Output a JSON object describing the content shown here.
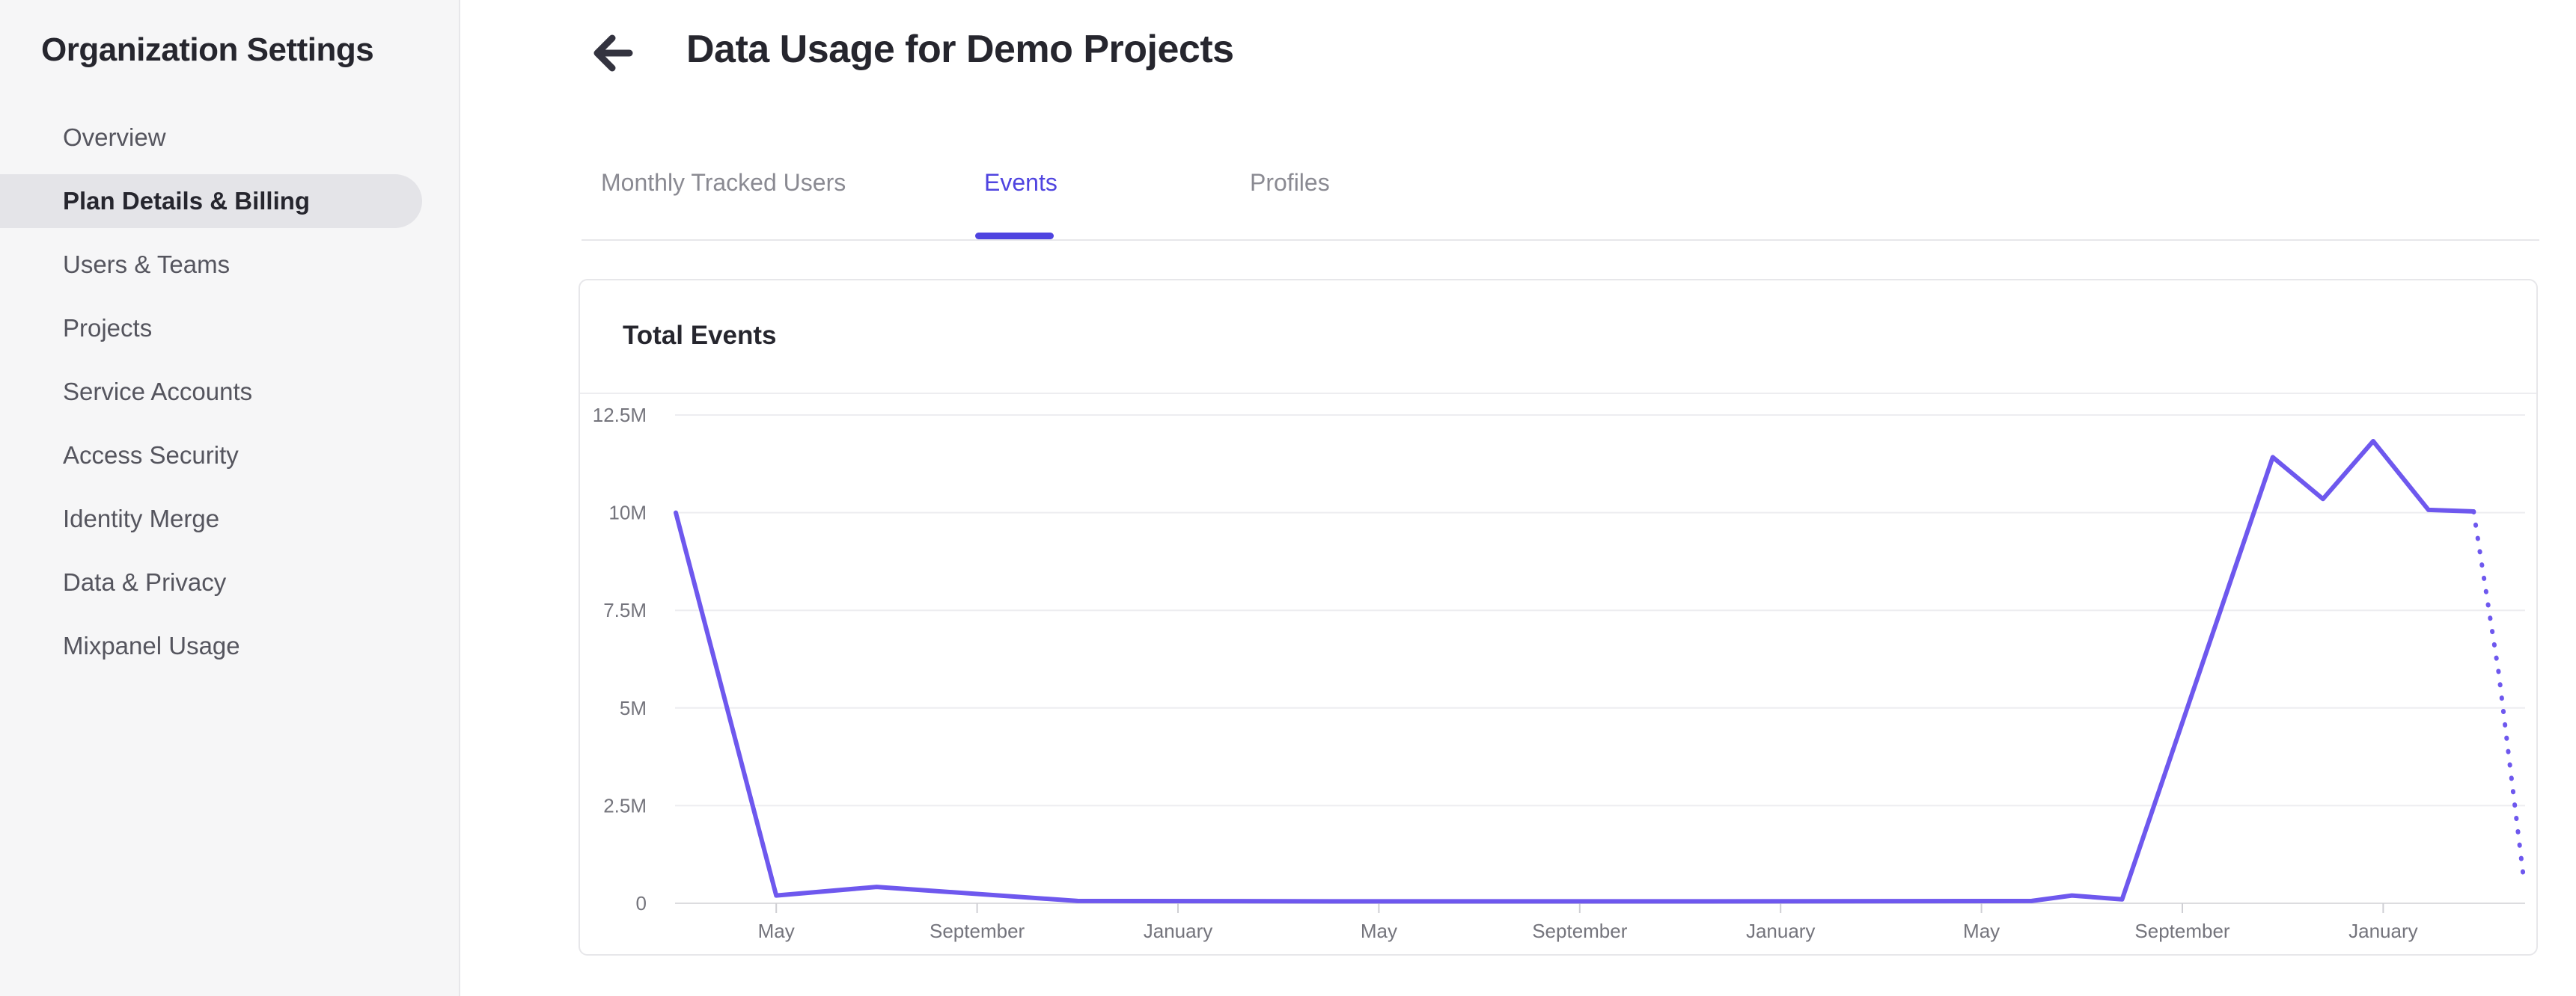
{
  "sidebar": {
    "title": "Organization Settings",
    "items": [
      {
        "label": "Overview",
        "selected": false
      },
      {
        "label": "Plan Details & Billing",
        "selected": true
      },
      {
        "label": "Users & Teams",
        "selected": false
      },
      {
        "label": "Projects",
        "selected": false
      },
      {
        "label": "Service Accounts",
        "selected": false
      },
      {
        "label": "Access Security",
        "selected": false
      },
      {
        "label": "Identity Merge",
        "selected": false
      },
      {
        "label": "Data & Privacy",
        "selected": false
      },
      {
        "label": "Mixpanel Usage",
        "selected": false
      }
    ]
  },
  "header": {
    "title": "Data Usage for Demo Projects",
    "back_icon": "arrow-left"
  },
  "tabs": [
    {
      "label": "Monthly Tracked Users",
      "active": false
    },
    {
      "label": "Events",
      "active": true
    },
    {
      "label": "Profiles",
      "active": false
    }
  ],
  "card": {
    "title": "Total Events"
  },
  "chart_data": {
    "type": "line",
    "title": "Total Events",
    "ylim": [
      0,
      12500000
    ],
    "grid": true,
    "legend": "none",
    "y_ticks": [
      {
        "label": "0",
        "value": 0
      },
      {
        "label": "2.5M",
        "value": 2500000
      },
      {
        "label": "5M",
        "value": 5000000
      },
      {
        "label": "7.5M",
        "value": 7500000
      },
      {
        "label": "10M",
        "value": 10000000
      },
      {
        "label": "12.5M",
        "value": 12500000
      }
    ],
    "x_ticks": [
      {
        "label": "May",
        "month": 2
      },
      {
        "label": "September",
        "month": 6
      },
      {
        "label": "January",
        "month": 10
      },
      {
        "label": "May",
        "month": 14
      },
      {
        "label": "September",
        "month": 18
      },
      {
        "label": "January",
        "month": 22
      },
      {
        "label": "May",
        "month": 26
      },
      {
        "label": "September",
        "month": 30
      },
      {
        "label": "January",
        "month": 34
      }
    ],
    "series": [
      {
        "name": "Total Events",
        "style": "solid",
        "points": [
          [
            0,
            10000000
          ],
          [
            2,
            200000
          ],
          [
            4,
            420000
          ],
          [
            8,
            60000
          ],
          [
            14,
            50000
          ],
          [
            20,
            50000
          ],
          [
            27,
            60000
          ],
          [
            27.8,
            200000
          ],
          [
            28.8,
            100000
          ],
          [
            31.8,
            11420000
          ],
          [
            32.8,
            10350000
          ],
          [
            33.8,
            11830000
          ],
          [
            34.9,
            10070000
          ],
          [
            35.8,
            10030000
          ]
        ]
      },
      {
        "name": "Total Events (projected)",
        "style": "dotted",
        "points": [
          [
            35.8,
            10030000
          ],
          [
            36.3,
            5900000
          ],
          [
            36.8,
            600000
          ]
        ]
      }
    ]
  },
  "colors": {
    "accent": "#4f44e0",
    "line": "#6e58ee",
    "sidebar_bg": "#f6f6f7",
    "pill": "#e4e4e8",
    "text_dark": "#26262e",
    "text_gray": "#55555e",
    "tab_gray": "#8a8a92",
    "muted": "#74747c",
    "border": "#e7e7ea",
    "grid": "#ededf0",
    "axis": "#dcdcdf",
    "tick": "#cfcfd4"
  }
}
